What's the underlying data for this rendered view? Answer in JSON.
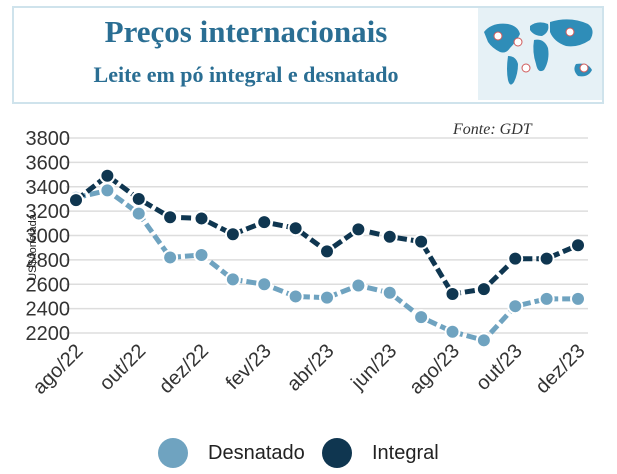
{
  "header": {
    "title": "Preços internacionais",
    "subtitle": "Leite em pó integral e desnatado",
    "map_icon": "world-map-icon"
  },
  "source": "Fonte: GDT",
  "colors": {
    "title": "#2a6e93",
    "desnatado": "#6fa3c0",
    "integral": "#0f3650",
    "grid": "#dddddd"
  },
  "chart_data": {
    "type": "line",
    "title": "Preços internacionais",
    "subtitle": "Leite em pó integral e desnatado",
    "xlabel": "",
    "ylabel": "US$/tonelada",
    "ylim": [
      2200,
      3800
    ],
    "yticks": [
      2200,
      2400,
      2600,
      2800,
      3000,
      3200,
      3400,
      3600,
      3800
    ],
    "x": [
      "ago/22",
      "set/22",
      "out/22",
      "nov/22",
      "dez/22",
      "jan/23",
      "fev/23",
      "mar/23",
      "abr/23",
      "mai/23",
      "jun/23",
      "jul/23",
      "ago/23",
      "set/23",
      "out/23",
      "nov/23",
      "dez/23"
    ],
    "xtick_labels": [
      "ago/22",
      "out/22",
      "dez/22",
      "fev/23",
      "abr/23",
      "jun/23",
      "ago/23",
      "out/23",
      "dez/23"
    ],
    "grid": true,
    "legend_position": "bottom",
    "series": [
      {
        "name": "Desnatado",
        "color": "#6fa3c0",
        "values": [
          3310,
          3370,
          3180,
          2820,
          2840,
          2640,
          2600,
          2500,
          2490,
          2590,
          2530,
          2330,
          2210,
          2140,
          2420,
          2480,
          2480
        ]
      },
      {
        "name": "Integral",
        "color": "#0f3650",
        "values": [
          3290,
          3490,
          3300,
          3150,
          3140,
          3010,
          3110,
          3060,
          2870,
          3050,
          2990,
          2950,
          2520,
          2560,
          2810,
          2810,
          2920
        ]
      }
    ]
  }
}
